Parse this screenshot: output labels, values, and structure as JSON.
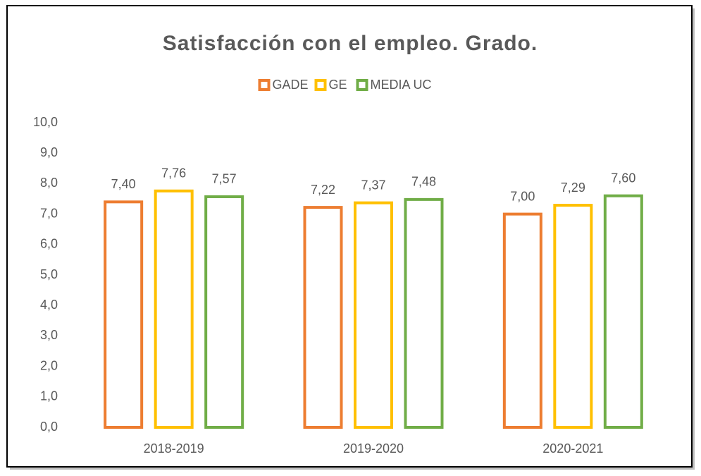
{
  "chart_data": {
    "type": "bar",
    "title": "Satisfacción con el empleo. Grado.",
    "categories": [
      "2018-2019",
      "2019-2020",
      "2020-2021"
    ],
    "series": [
      {
        "name": "GADE",
        "color": "#ed7d31",
        "values": [
          7.4,
          7.22,
          7.0
        ],
        "value_labels": [
          "7,40",
          "7,22",
          "7,00"
        ]
      },
      {
        "name": "GE",
        "color": "#ffc000",
        "values": [
          7.76,
          7.37,
          7.29
        ],
        "value_labels": [
          "7,76",
          "7,37",
          "7,29"
        ]
      },
      {
        "name": "MEDIA UC",
        "color": "#70ad47",
        "values": [
          7.57,
          7.48,
          7.6
        ],
        "value_labels": [
          "7,57",
          "7,48",
          "7,60"
        ]
      }
    ],
    "ylim": [
      0,
      10
    ],
    "yticks": [
      {
        "value": 0,
        "label": "0,0"
      },
      {
        "value": 1,
        "label": "1,0"
      },
      {
        "value": 2,
        "label": "2,0"
      },
      {
        "value": 3,
        "label": "3,0"
      },
      {
        "value": 4,
        "label": "4,0"
      },
      {
        "value": 5,
        "label": "5,0"
      },
      {
        "value": 6,
        "label": "6,0"
      },
      {
        "value": 7,
        "label": "7,0"
      },
      {
        "value": 8,
        "label": "8,0"
      },
      {
        "value": 9,
        "label": "9,0"
      },
      {
        "value": 10,
        "label": "10,0"
      }
    ],
    "legend": "top",
    "grid": false
  }
}
